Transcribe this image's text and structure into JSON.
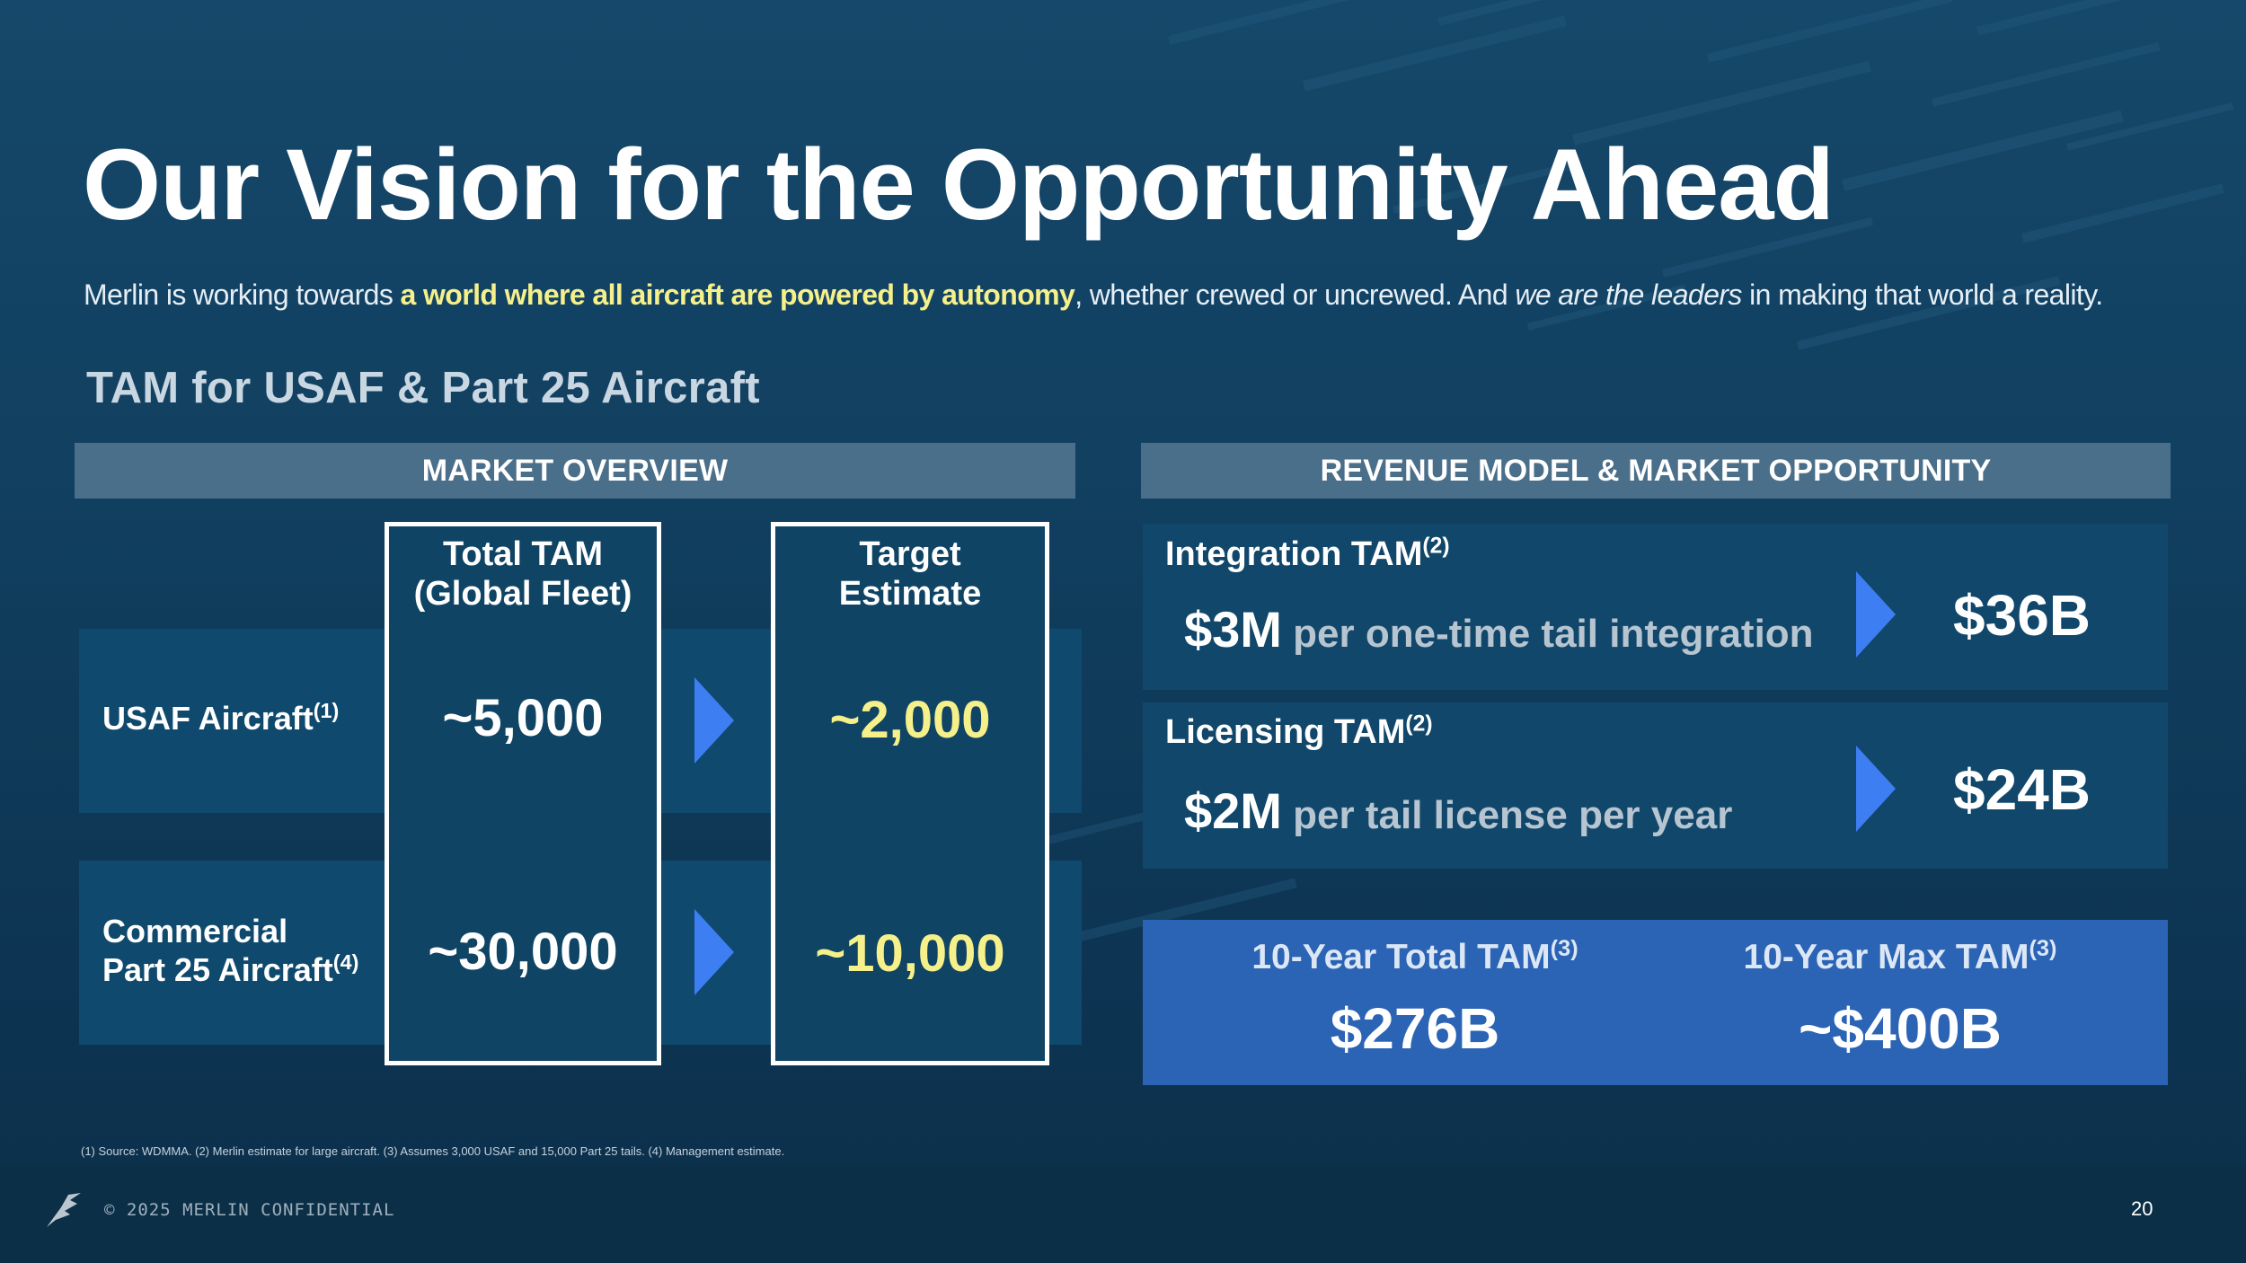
{
  "slide": {
    "title": "Our Vision for the Opportunity Ahead",
    "subtitle": {
      "part1": "Merlin is working towards ",
      "highlight": "a world where all aircraft are powered by autonomy",
      "part2": ", whether crewed or uncrewed. And ",
      "emphasis": "we are the leaders",
      "part3": " in making that world a reality."
    },
    "section_title": "TAM for USAF & Part 25 Aircraft"
  },
  "market_overview": {
    "header": "MARKET OVERVIEW",
    "col1_line1": "Total TAM",
    "col1_line2": "(Global Fleet)",
    "col2_line1": "Target",
    "col2_line2": "Estimate",
    "rows": [
      {
        "label_line1": "USAF Aircraft",
        "label_line2": "",
        "footnote_ref": "(1)",
        "total": "~5,000",
        "target": "~2,000"
      },
      {
        "label_line1": "Commercial",
        "label_line2": "Part 25 Aircraft",
        "footnote_ref": "(4)",
        "total": "~30,000",
        "target": "~10,000"
      }
    ]
  },
  "revenue_model": {
    "header": "REVENUE MODEL & MARKET OPPORTUNITY",
    "items": [
      {
        "title": "Integration TAM",
        "footnote_ref": "(2)",
        "amount": "$3M",
        "description": " per one-time tail integration",
        "value": "$36B"
      },
      {
        "title": "Licensing TAM",
        "footnote_ref": "(2)",
        "amount": "$2M",
        "description": " per tail license per year",
        "value": "$24B"
      }
    ],
    "totals": [
      {
        "label": "10-Year Total TAM",
        "footnote_ref": "(3)",
        "value": "$276B"
      },
      {
        "label": "10-Year Max TAM",
        "footnote_ref": "(3)",
        "value": "~$400B"
      }
    ]
  },
  "footer": {
    "footnotes": "(1) Source: WDMMA. (2) Merlin estimate for large aircraft. (3) Assumes 3,000 USAF and 15,000 Part 25 tails. (4) Management estimate.",
    "confidential": "© 2025 MERLIN CONFIDENTIAL",
    "page_number": "20"
  },
  "colors": {
    "background": "#11405f",
    "highlight_yellow": "#f6f08a",
    "arrow_blue": "#3d7ef2",
    "header_bar": "#4a6f8a",
    "total_box": "#2b63b5"
  },
  "icons": [
    "merlin-logo-icon",
    "arrow-right-icon"
  ]
}
